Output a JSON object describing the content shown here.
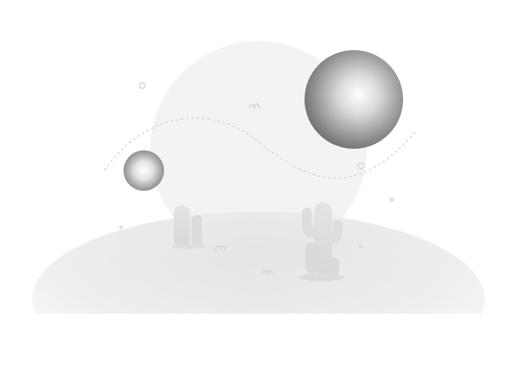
{
  "illustration": {
    "description_icon": "desert-planets-illustration",
    "colors": {
      "background": "#ffffff",
      "backdrop_circle": "#f3f3f3",
      "ground": "#ececec",
      "cactus": "#e2e2e2",
      "sphere_dark": "#777777",
      "sphere_light": "#ffffff",
      "dotted_orbit": "#dcdcdc",
      "sparkle": "#e0e0e0"
    }
  }
}
